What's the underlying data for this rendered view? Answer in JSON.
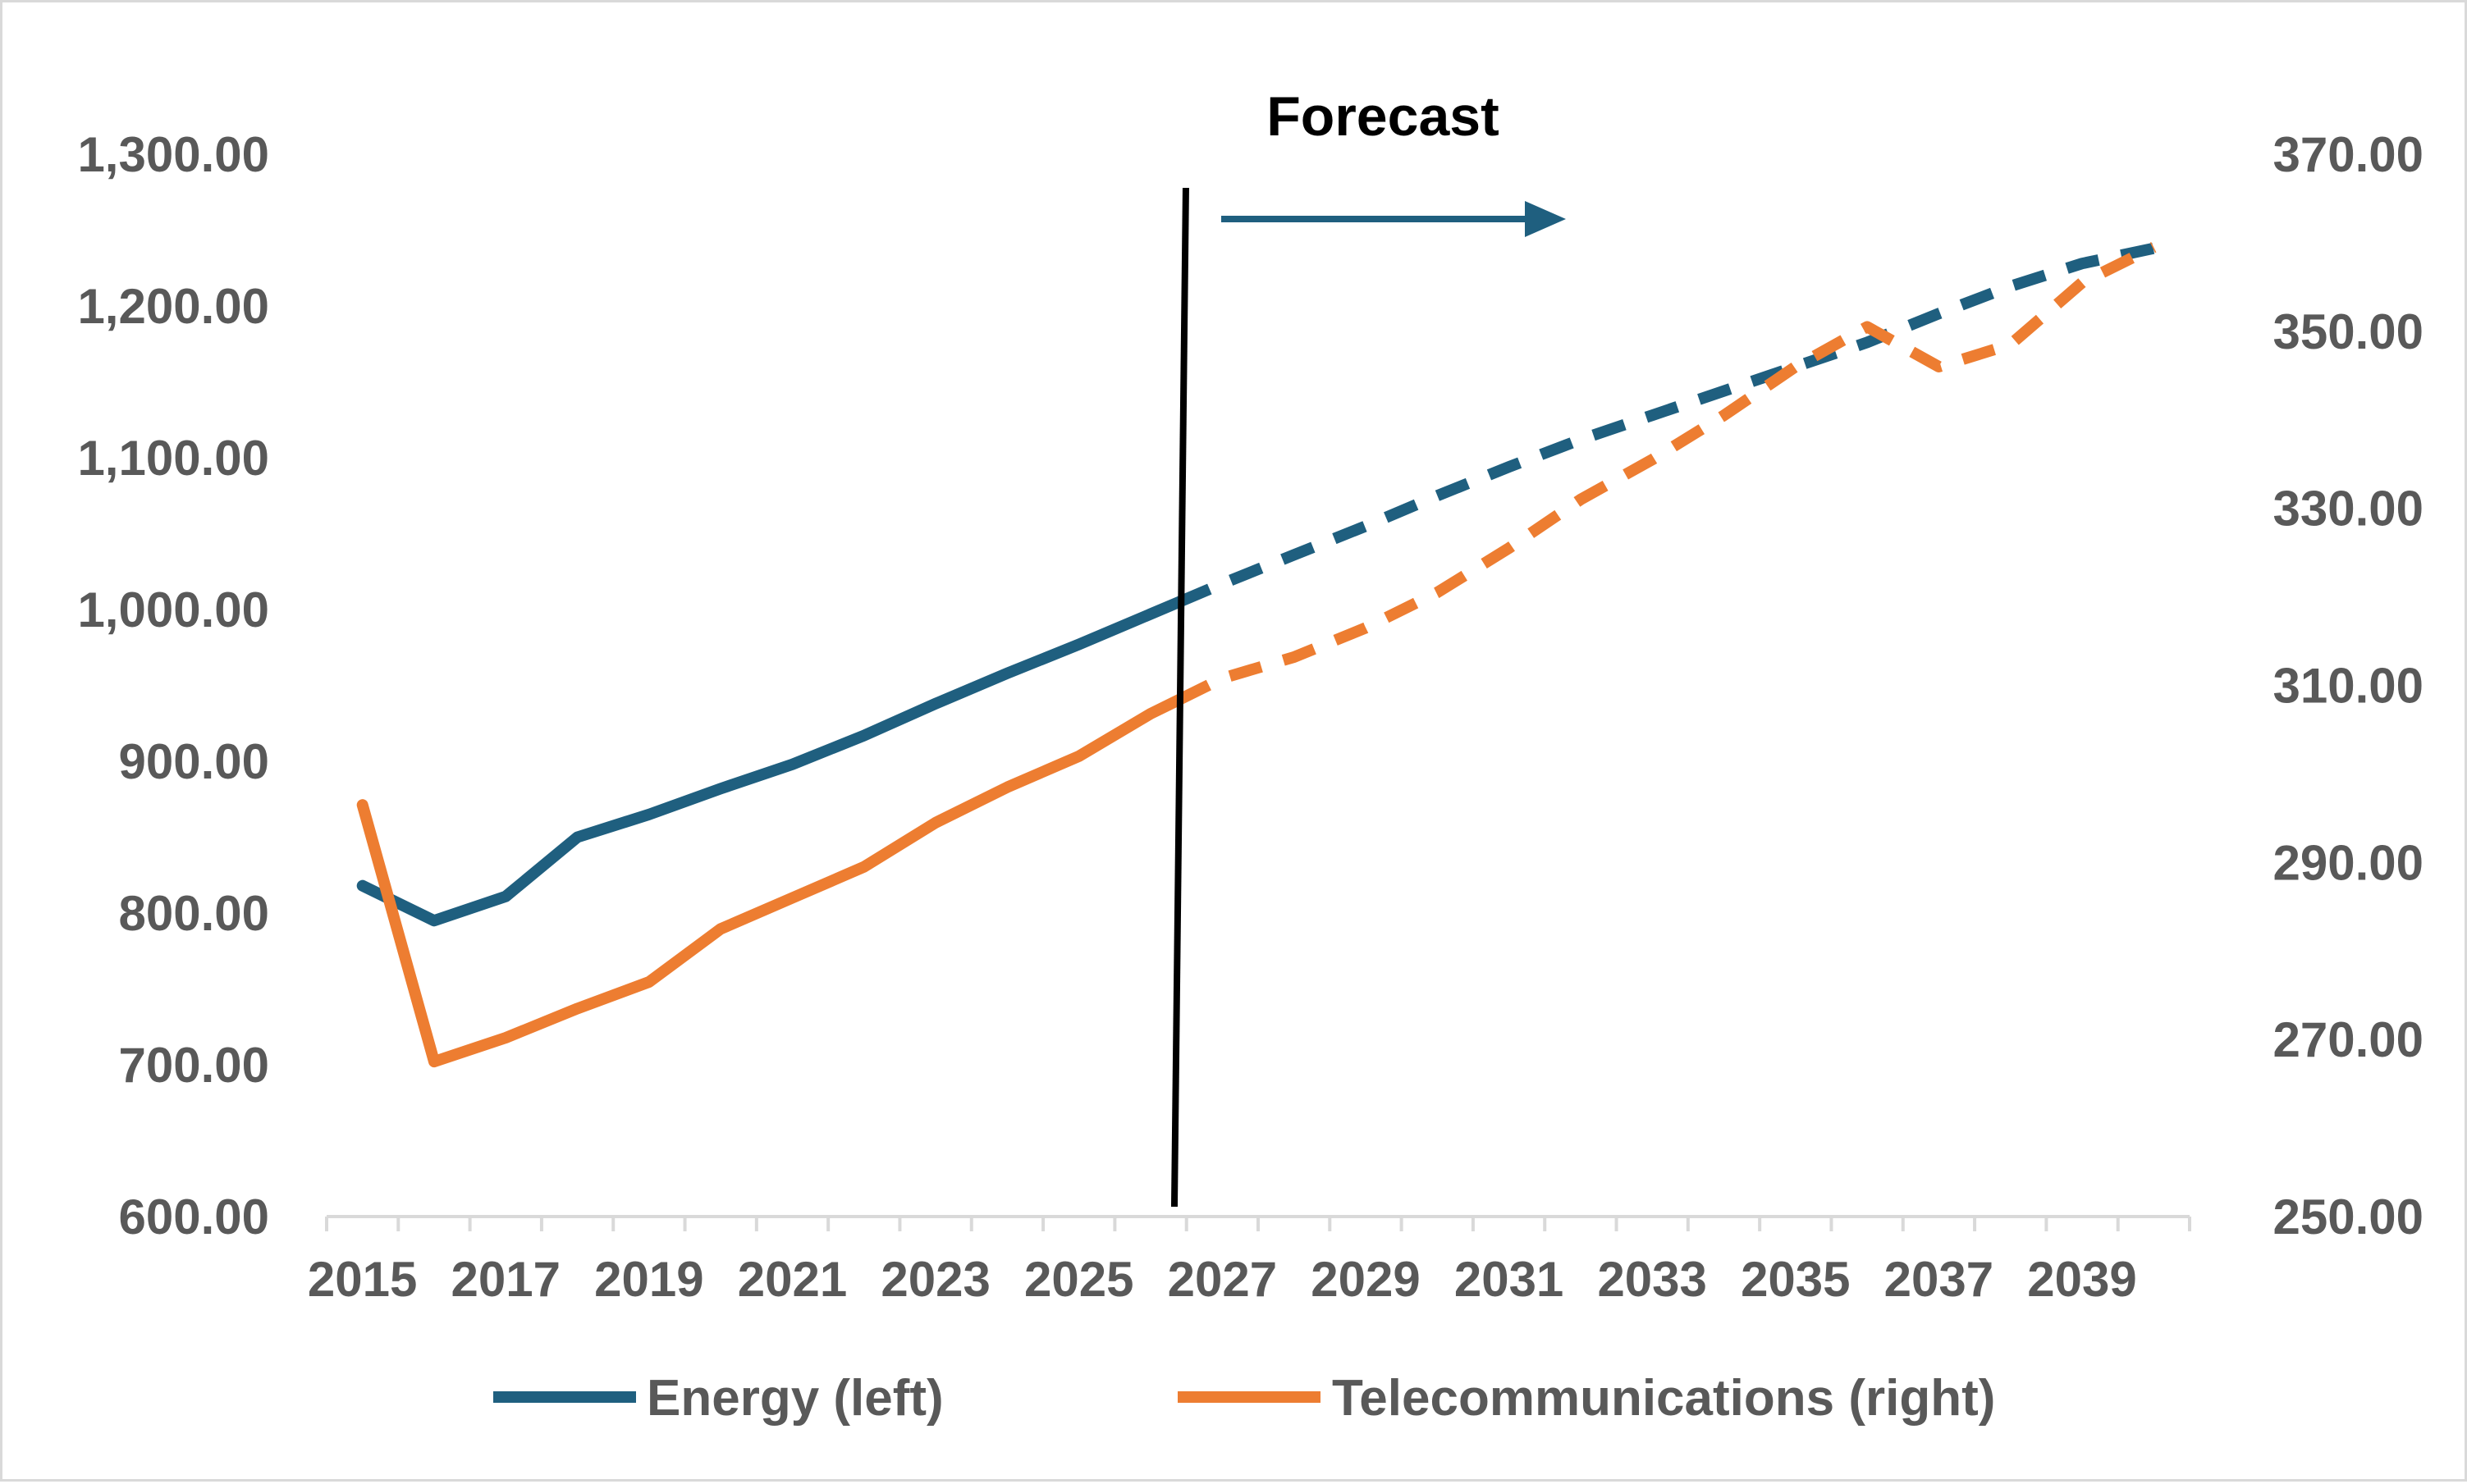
{
  "chart_data": {
    "type": "line",
    "title": "",
    "xlabel": "",
    "ylabel_left": "",
    "ylabel_right": "",
    "x": [
      2015,
      2016,
      2017,
      2018,
      2019,
      2020,
      2021,
      2022,
      2023,
      2024,
      2025,
      2026,
      2027,
      2028,
      2029,
      2030,
      2031,
      2032,
      2033,
      2034,
      2035,
      2036,
      2037,
      2038,
      2039,
      2040
    ],
    "x_tick_labels": [
      "2015",
      "2017",
      "2019",
      "2021",
      "2023",
      "2025",
      "2027",
      "2029",
      "2031",
      "2033",
      "2035",
      "2037",
      "2039"
    ],
    "y_left": {
      "lim": [
        600,
        1300
      ],
      "tick_labels": [
        "600.00",
        "700.00",
        "800.00",
        "900.00",
        "1,000.00",
        "1,100.00",
        "1,200.00",
        "1,300.00"
      ],
      "ticks": [
        600,
        700,
        800,
        900,
        1000,
        1100,
        1200,
        1300
      ]
    },
    "y_right": {
      "lim": [
        250,
        370
      ],
      "tick_labels": [
        "250.00",
        "270.00",
        "290.00",
        "310.00",
        "330.00",
        "350.00",
        "370.00"
      ],
      "ticks": [
        250,
        270,
        290,
        310,
        330,
        350,
        370
      ]
    },
    "forecast_start": 2026.4,
    "series": [
      {
        "name": "Energy (left)",
        "axis": "left",
        "color": "#1f5f7f",
        "values": [
          818,
          795,
          811,
          850,
          865,
          882,
          898,
          917,
          938,
          958,
          977,
          997,
          1017,
          1036,
          1055,
          1075,
          1094,
          1112,
          1128,
          1144,
          1160,
          1176,
          1195,
          1213,
          1228,
          1238
        ]
      },
      {
        "name": "Telecommunications (right)",
        "axis": "right",
        "color": "#ed7d31",
        "values": [
          296.5,
          267.5,
          270.2,
          273.5,
          276.5,
          282.5,
          286,
          289.5,
          294.5,
          298.5,
          302,
          306.8,
          310.8,
          313.2,
          316.5,
          320.5,
          325.5,
          331,
          335.5,
          340.5,
          346,
          350.5,
          346,
          348.5,
          355.5,
          359.5
        ]
      }
    ],
    "annotations": {
      "forecast_label": "Forecast"
    },
    "legend": {
      "position": "bottom"
    }
  }
}
